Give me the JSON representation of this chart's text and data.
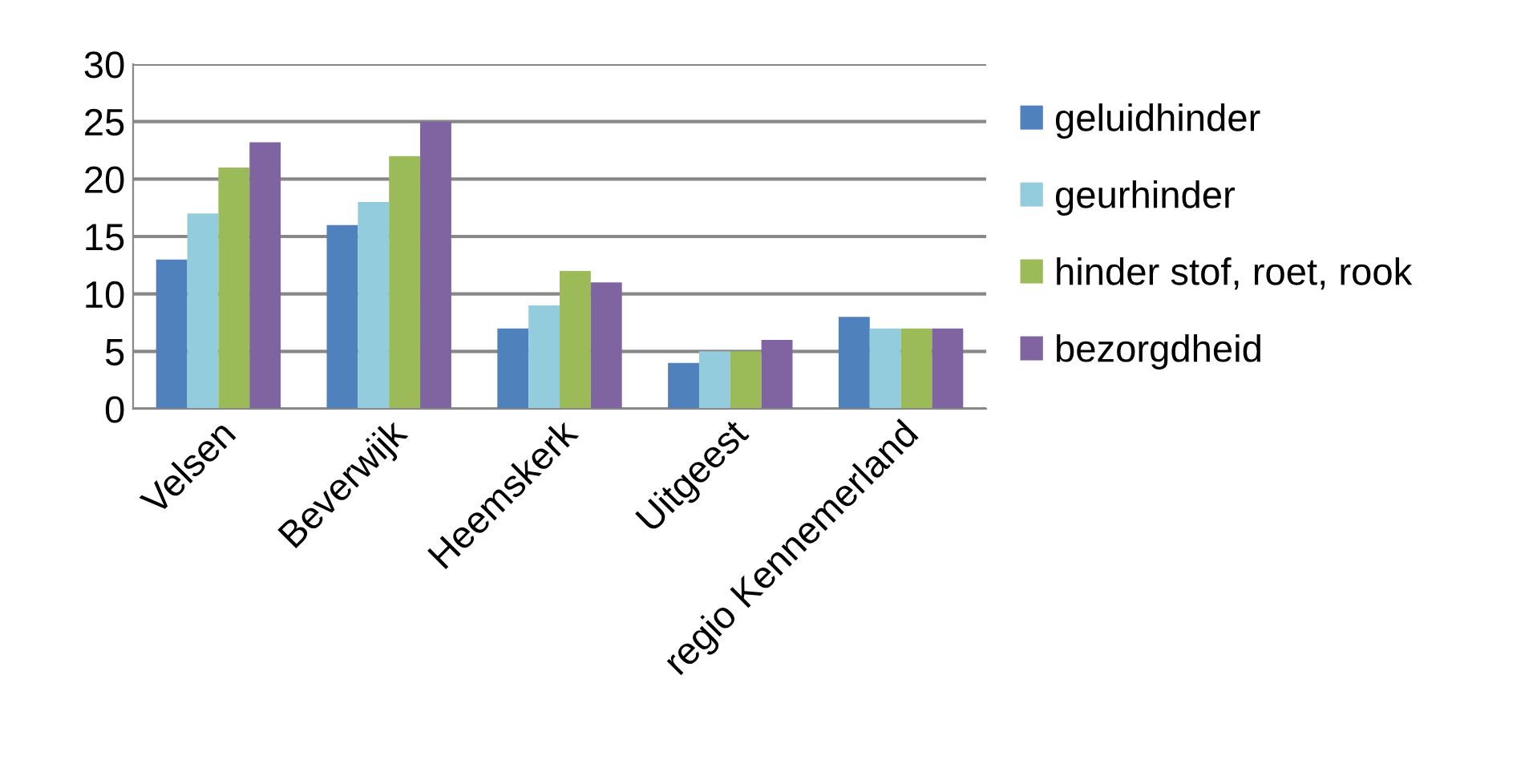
{
  "chart_data": {
    "type": "bar",
    "categories": [
      "Velsen",
      "Beverwijk",
      "Heemskerk",
      "Uitgeest",
      "regio Kennemerland"
    ],
    "series": [
      {
        "name": "geluidhinder",
        "color": "#4f81bd",
        "values": [
          13,
          16,
          7,
          4,
          8
        ]
      },
      {
        "name": "geurhinder",
        "color": "#93cddd",
        "values": [
          17,
          18,
          9,
          5,
          7
        ]
      },
      {
        "name": "hinder stof, roet, rook",
        "color": "#9bbb59",
        "values": [
          21,
          22,
          12,
          5,
          7
        ]
      },
      {
        "name": "bezorgdheid",
        "color": "#8064a2",
        "values": [
          23.2,
          25,
          11,
          6,
          7
        ]
      }
    ],
    "ylim": [
      0,
      30
    ],
    "yticks": [
      0,
      5,
      10,
      15,
      20,
      25,
      30
    ],
    "grid": "y",
    "legend": "right"
  }
}
